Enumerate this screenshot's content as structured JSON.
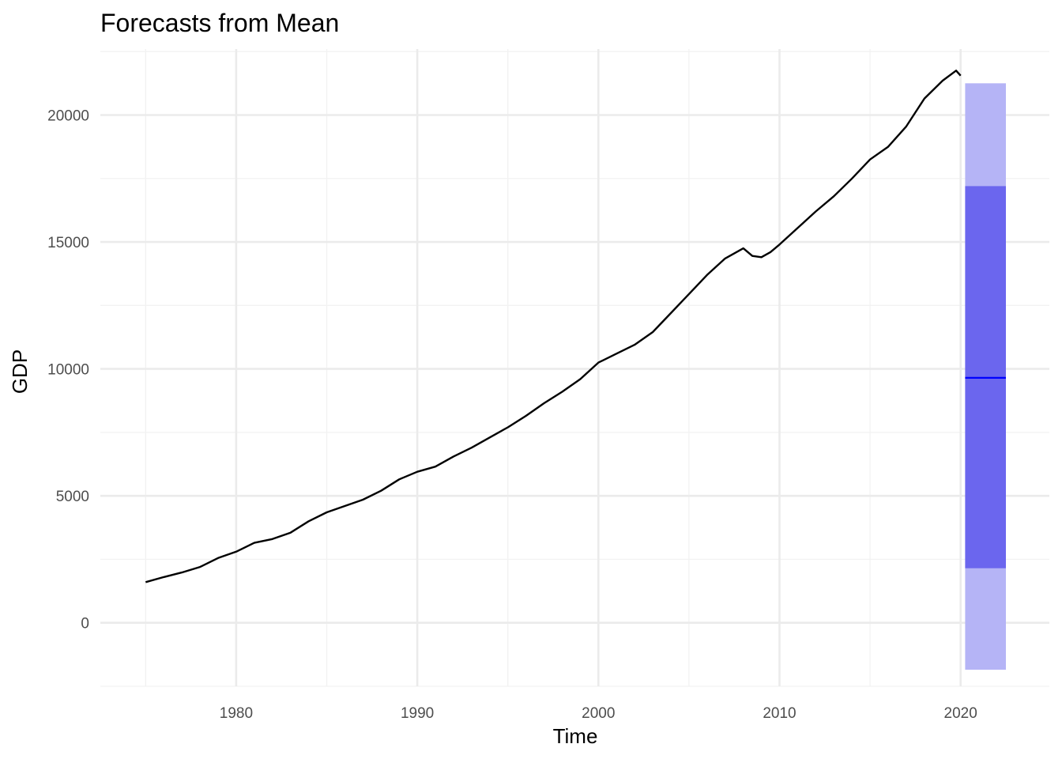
{
  "chart_data": {
    "type": "line",
    "title": "Forecasts from Mean",
    "xlabel": "Time",
    "ylabel": "GDP",
    "xlim": [
      1972.5,
      2024.9
    ],
    "ylim": [
      -2500,
      22600
    ],
    "x_ticks": [
      1980,
      1990,
      2000,
      2010,
      2020
    ],
    "x_tick_labels": [
      "1980",
      "1990",
      "2000",
      "2010",
      "2020"
    ],
    "y_ticks": [
      0,
      5000,
      10000,
      15000,
      20000
    ],
    "y_tick_labels": [
      "0",
      "5000",
      "10000",
      "15000",
      "20000"
    ],
    "grid": true,
    "legend": "none",
    "colors": {
      "series": "#000000",
      "forecast_mean": "#0000ff",
      "interval_80": "#6b66ee",
      "interval_95": "#b5b4f6",
      "grid_major": "#ebebeb",
      "grid_minor": "#f2f2f2"
    },
    "series": [
      {
        "x": [
          1975.0,
          1976.0,
          1977.0,
          1978.0,
          1979.0,
          1980.0,
          1981.0,
          1982.0,
          1983.0,
          1984.0,
          1985.0,
          1986.0,
          1987.0,
          1988.0,
          1989.0,
          1990.0,
          1991.0,
          1992.0,
          1993.0,
          1994.0,
          1995.0,
          1996.0,
          1997.0,
          1998.0,
          1999.0,
          2000.0,
          2001.0,
          2002.0,
          2003.0,
          2004.0,
          2005.0,
          2006.0,
          2007.0,
          2008.0,
          2008.5,
          2009.0,
          2009.5,
          2010.0,
          2011.0,
          2012.0,
          2013.0,
          2014.0,
          2015.0,
          2016.0,
          2017.0,
          2018.0,
          2019.0,
          2019.75,
          2020.0
        ],
        "values": [
          1600,
          1800,
          1980,
          2200,
          2550,
          2800,
          3150,
          3300,
          3550,
          4000,
          4350,
          4600,
          4850,
          5200,
          5650,
          5950,
          6150,
          6550,
          6900,
          7300,
          7700,
          8150,
          8650,
          9100,
          9600,
          10250,
          10600,
          10950,
          11450,
          12200,
          12950,
          13700,
          14350,
          14750,
          14450,
          14400,
          14600,
          14900,
          15550,
          16200,
          16800,
          17500,
          18250,
          18750,
          19550,
          20650,
          21350,
          21750,
          21550
        ]
      }
    ],
    "forecast": {
      "x_start": 2020.25,
      "x_end": 2022.5,
      "mean": 9650,
      "lo80": 2150,
      "hi80": 17200,
      "lo95": -1850,
      "hi95": 21250
    }
  }
}
